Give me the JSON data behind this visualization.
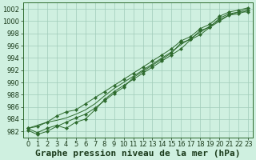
{
  "title": "Graphe pression niveau de la mer (hPa)",
  "xlabel": "Graphe pression niveau de la mer (hPa)",
  "hours": [
    0,
    1,
    2,
    3,
    4,
    5,
    6,
    7,
    8,
    9,
    10,
    11,
    12,
    13,
    14,
    15,
    16,
    17,
    18,
    19,
    20,
    21,
    22,
    23
  ],
  "line_smooth": [
    982.5,
    983.0,
    983.5,
    983.8,
    984.2,
    984.8,
    985.5,
    986.5,
    987.8,
    989.0,
    990.0,
    991.0,
    992.0,
    993.0,
    994.0,
    995.0,
    996.2,
    997.2,
    998.2,
    999.2,
    1000.2,
    1001.0,
    1001.5,
    1002.0
  ],
  "line_upper": [
    982.5,
    982.8,
    983.5,
    984.5,
    985.2,
    985.5,
    986.5,
    987.5,
    988.5,
    989.5,
    990.5,
    991.5,
    992.5,
    993.5,
    994.5,
    995.5,
    996.8,
    997.5,
    998.8,
    999.5,
    1000.8,
    1001.5,
    1001.8,
    1002.2
  ],
  "line_lower": [
    982.5,
    981.8,
    982.5,
    983.0,
    982.5,
    983.5,
    984.0,
    985.5,
    987.2,
    988.5,
    989.5,
    990.5,
    991.5,
    992.5,
    993.5,
    994.5,
    995.5,
    997.0,
    997.8,
    999.0,
    1000.0,
    1001.0,
    1001.2,
    1001.8
  ],
  "line_zigzag1": [
    982.2,
    981.5,
    982.0,
    982.8,
    983.5,
    984.2,
    984.8,
    985.8,
    987.0,
    988.2,
    989.2,
    990.8,
    991.8,
    992.8,
    993.8,
    994.8,
    996.5,
    997.0,
    998.5,
    999.0,
    1000.5,
    1001.2,
    1001.5,
    1001.5
  ],
  "ylim_min": 981,
  "ylim_max": 1003,
  "ytick_min": 982,
  "ytick_max": 1002,
  "ytick_step": 2,
  "line_color": "#2d6a2d",
  "marker_color": "#2d6a2d",
  "bg_color": "#cff0e0",
  "grid_color": "#a0ccb8",
  "label_color": "#1a3a1a",
  "title_fontsize": 8.0,
  "tick_fontsize": 6.0,
  "line_width": 0.7,
  "marker_size": 2.2
}
